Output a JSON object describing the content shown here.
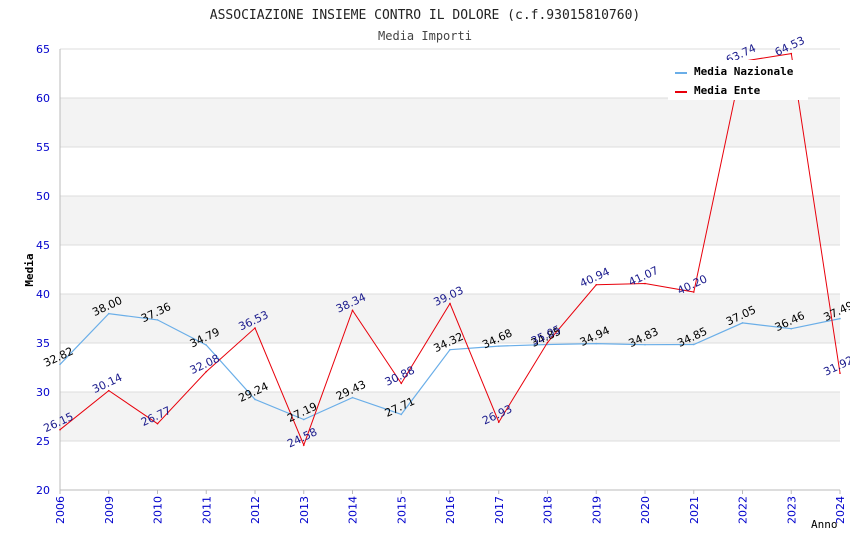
{
  "chart_data": {
    "type": "line",
    "title": "ASSOCIAZIONE INSIEME CONTRO IL DOLORE (c.f.93015810760)",
    "subtitle": "Media Importi",
    "xlabel": "Anno",
    "ylabel": "Media",
    "ylim": [
      20,
      65
    ],
    "ytick_step": 5,
    "categories": [
      "2006",
      "2009",
      "2010",
      "2011",
      "2012",
      "2013",
      "2014",
      "2015",
      "2016",
      "2017",
      "2018",
      "2019",
      "2020",
      "2021",
      "2022",
      "2023",
      "2024"
    ],
    "series": [
      {
        "name": "Media Nazionale",
        "color": "#6aaee8",
        "label_color": "#000000",
        "values": [
          32.82,
          38.0,
          37.36,
          34.79,
          29.24,
          27.19,
          29.43,
          27.71,
          34.32,
          34.68,
          34.85,
          34.94,
          34.83,
          34.85,
          37.05,
          36.46,
          37.49
        ],
        "labels": [
          "32.82",
          "38.00",
          "37.36",
          "34.79",
          "29.24",
          "27.19",
          "29.43",
          "27.71",
          "34.32",
          "34.68",
          "34.85",
          "34.94",
          "34.83",
          "34.85",
          "37.05",
          "36.46",
          "37.49"
        ]
      },
      {
        "name": "Media Ente",
        "color": "#e8000b",
        "label_color": "#1a1a8c",
        "values": [
          26.15,
          30.14,
          26.77,
          32.08,
          36.53,
          24.58,
          38.34,
          30.88,
          39.03,
          26.93,
          35.05,
          40.94,
          41.07,
          40.2,
          63.74,
          64.53,
          31.92
        ],
        "labels": [
          "26.15",
          "30.14",
          "26.77",
          "32.08",
          "36.53",
          "24.58",
          "38.34",
          "30.88",
          "39.03",
          "26.93",
          "35.05",
          "40.94",
          "41.07",
          "40.20",
          "63.74",
          "64.53",
          "31.92"
        ]
      }
    ],
    "grid": true,
    "legend_position": "top-right",
    "tick_color": "#0000cc"
  }
}
